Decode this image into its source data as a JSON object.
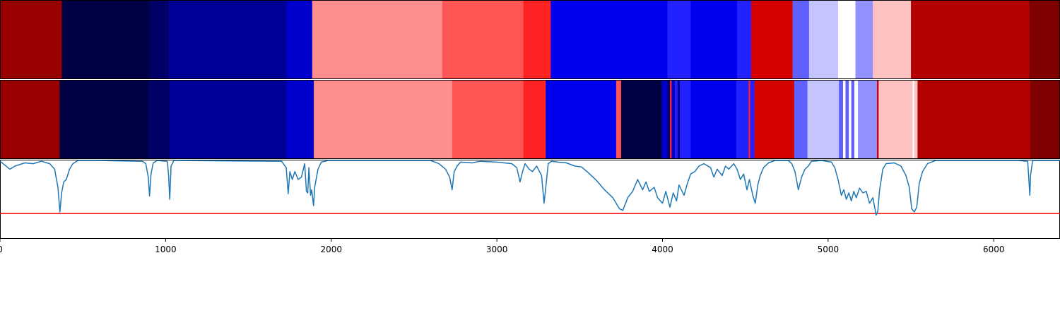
{
  "chart_data": {
    "type": "heatmap",
    "xlim": [
      0,
      6400
    ],
    "xticks": [
      "0",
      "1000",
      "2000",
      "3000",
      "4000",
      "5000",
      "6000"
    ],
    "tick_values": [
      0,
      1000,
      2000,
      3000,
      4000,
      5000,
      6000
    ],
    "rows": [
      {
        "segments": [
          {
            "start": 0,
            "end": 373,
            "color": "#990000"
          },
          {
            "start": 373,
            "end": 905,
            "color": "#000044"
          },
          {
            "start": 905,
            "end": 1020,
            "color": "#000066"
          },
          {
            "start": 1020,
            "end": 1730,
            "color": "#000099"
          },
          {
            "start": 1730,
            "end": 1885,
            "color": "#0000cc"
          },
          {
            "start": 1885,
            "end": 2670,
            "color": "#ff8f8f"
          },
          {
            "start": 2670,
            "end": 3160,
            "color": "#ff5555"
          },
          {
            "start": 3160,
            "end": 3325,
            "color": "#ff2222"
          },
          {
            "start": 3325,
            "end": 4030,
            "color": "#0000ee"
          },
          {
            "start": 4030,
            "end": 4170,
            "color": "#2222ff"
          },
          {
            "start": 4170,
            "end": 4450,
            "color": "#0000ee"
          },
          {
            "start": 4450,
            "end": 4535,
            "color": "#2222ff"
          },
          {
            "start": 4535,
            "end": 4785,
            "color": "#d50000"
          },
          {
            "start": 4785,
            "end": 4885,
            "color": "#6060ff"
          },
          {
            "start": 4885,
            "end": 5060,
            "color": "#c4c4ff"
          },
          {
            "start": 5060,
            "end": 5165,
            "color": "#ffffff"
          },
          {
            "start": 5165,
            "end": 5270,
            "color": "#9090ff"
          },
          {
            "start": 5270,
            "end": 5500,
            "color": "#ffc2c2"
          },
          {
            "start": 5500,
            "end": 6215,
            "color": "#b30000"
          },
          {
            "start": 6215,
            "end": 6400,
            "color": "#7f0000"
          }
        ]
      },
      {
        "segments": [
          {
            "start": 0,
            "end": 360,
            "color": "#990000"
          },
          {
            "start": 360,
            "end": 895,
            "color": "#000044"
          },
          {
            "start": 895,
            "end": 1025,
            "color": "#000066"
          },
          {
            "start": 1025,
            "end": 1730,
            "color": "#000099"
          },
          {
            "start": 1730,
            "end": 1895,
            "color": "#0000cc"
          },
          {
            "start": 1895,
            "end": 2730,
            "color": "#ff8f8f"
          },
          {
            "start": 2730,
            "end": 3160,
            "color": "#ff5555"
          },
          {
            "start": 3160,
            "end": 3295,
            "color": "#ff2222"
          },
          {
            "start": 3295,
            "end": 3720,
            "color": "#0000ee"
          },
          {
            "start": 3720,
            "end": 3750,
            "color": "#ff5555"
          },
          {
            "start": 3750,
            "end": 3995,
            "color": "#000044"
          },
          {
            "start": 3995,
            "end": 4030,
            "color": "#0000cc"
          },
          {
            "start": 4030,
            "end": 4045,
            "color": "#000066"
          },
          {
            "start": 4045,
            "end": 4055,
            "color": "#ff2222"
          },
          {
            "start": 4055,
            "end": 4075,
            "color": "#0000cc"
          },
          {
            "start": 4075,
            "end": 4090,
            "color": "#2222ff"
          },
          {
            "start": 4090,
            "end": 4105,
            "color": "#000099"
          },
          {
            "start": 4105,
            "end": 4170,
            "color": "#2222ff"
          },
          {
            "start": 4170,
            "end": 4445,
            "color": "#0000ee"
          },
          {
            "start": 4445,
            "end": 4520,
            "color": "#2222ff"
          },
          {
            "start": 4520,
            "end": 4530,
            "color": "#ff2222"
          },
          {
            "start": 4530,
            "end": 4555,
            "color": "#2222ff"
          },
          {
            "start": 4555,
            "end": 4795,
            "color": "#d50000"
          },
          {
            "start": 4795,
            "end": 4875,
            "color": "#6060ff"
          },
          {
            "start": 4875,
            "end": 5065,
            "color": "#c4c4ff"
          },
          {
            "start": 5065,
            "end": 5090,
            "color": "#6060ff"
          },
          {
            "start": 5090,
            "end": 5105,
            "color": "#ffffff"
          },
          {
            "start": 5105,
            "end": 5125,
            "color": "#6060ff"
          },
          {
            "start": 5125,
            "end": 5140,
            "color": "#ffffff"
          },
          {
            "start": 5140,
            "end": 5158,
            "color": "#6060ff"
          },
          {
            "start": 5158,
            "end": 5180,
            "color": "#ffffff"
          },
          {
            "start": 5180,
            "end": 5295,
            "color": "#9090ff"
          },
          {
            "start": 5295,
            "end": 5305,
            "color": "#cc0000"
          },
          {
            "start": 5305,
            "end": 5510,
            "color": "#ffc2c2"
          },
          {
            "start": 5510,
            "end": 5520,
            "color": "#ffffff"
          },
          {
            "start": 5520,
            "end": 5540,
            "color": "#ffc2c2"
          },
          {
            "start": 5540,
            "end": 6220,
            "color": "#b30000"
          },
          {
            "start": 6220,
            "end": 6400,
            "color": "#7f0000"
          }
        ]
      }
    ],
    "line_panel": {
      "type": "line",
      "ylim": [
        1.0,
        0.0
      ],
      "threshold": 0.68,
      "threshold_color": "#ff0000",
      "line_color": "#1f77b4",
      "points": [
        [
          0,
          0.02
        ],
        [
          60,
          0.12
        ],
        [
          90,
          0.08
        ],
        [
          150,
          0.04
        ],
        [
          200,
          0.05
        ],
        [
          250,
          0.02
        ],
        [
          300,
          0.05
        ],
        [
          330,
          0.12
        ],
        [
          350,
          0.35
        ],
        [
          362,
          0.66
        ],
        [
          372,
          0.42
        ],
        [
          385,
          0.28
        ],
        [
          400,
          0.25
        ],
        [
          420,
          0.12
        ],
        [
          440,
          0.05
        ],
        [
          470,
          0.01
        ],
        [
          600,
          0.01
        ],
        [
          860,
          0.02
        ],
        [
          880,
          0.05
        ],
        [
          895,
          0.22
        ],
        [
          903,
          0.46
        ],
        [
          912,
          0.18
        ],
        [
          925,
          0.04
        ],
        [
          950,
          0.01
        ],
        [
          1010,
          0.02
        ],
        [
          1018,
          0.2
        ],
        [
          1025,
          0.5
        ],
        [
          1033,
          0.08
        ],
        [
          1050,
          0.01
        ],
        [
          1700,
          0.02
        ],
        [
          1728,
          0.1
        ],
        [
          1740,
          0.43
        ],
        [
          1750,
          0.15
        ],
        [
          1765,
          0.25
        ],
        [
          1780,
          0.15
        ],
        [
          1800,
          0.25
        ],
        [
          1820,
          0.22
        ],
        [
          1840,
          0.05
        ],
        [
          1850,
          0.4
        ],
        [
          1858,
          0.42
        ],
        [
          1865,
          0.1
        ],
        [
          1875,
          0.45
        ],
        [
          1882,
          0.38
        ],
        [
          1893,
          0.58
        ],
        [
          1900,
          0.35
        ],
        [
          1920,
          0.12
        ],
        [
          1940,
          0.03
        ],
        [
          1980,
          0.01
        ],
        [
          2600,
          0.01
        ],
        [
          2650,
          0.05
        ],
        [
          2690,
          0.12
        ],
        [
          2715,
          0.22
        ],
        [
          2730,
          0.38
        ],
        [
          2742,
          0.15
        ],
        [
          2760,
          0.08
        ],
        [
          2780,
          0.03
        ],
        [
          2850,
          0.04
        ],
        [
          2900,
          0.02
        ],
        [
          3000,
          0.03
        ],
        [
          3090,
          0.05
        ],
        [
          3120,
          0.1
        ],
        [
          3140,
          0.28
        ],
        [
          3155,
          0.15
        ],
        [
          3170,
          0.05
        ],
        [
          3195,
          0.12
        ],
        [
          3215,
          0.15
        ],
        [
          3240,
          0.08
        ],
        [
          3270,
          0.2
        ],
        [
          3285,
          0.55
        ],
        [
          3295,
          0.35
        ],
        [
          3310,
          0.05
        ],
        [
          3330,
          0.02
        ],
        [
          3370,
          0.03
        ],
        [
          3420,
          0.04
        ],
        [
          3470,
          0.08
        ],
        [
          3510,
          0.09
        ],
        [
          3550,
          0.16
        ],
        [
          3600,
          0.26
        ],
        [
          3650,
          0.38
        ],
        [
          3700,
          0.48
        ],
        [
          3740,
          0.62
        ],
        [
          3760,
          0.64
        ],
        [
          3790,
          0.48
        ],
        [
          3820,
          0.4
        ],
        [
          3850,
          0.25
        ],
        [
          3880,
          0.38
        ],
        [
          3900,
          0.28
        ],
        [
          3920,
          0.4
        ],
        [
          3950,
          0.35
        ],
        [
          3970,
          0.48
        ],
        [
          4000,
          0.55
        ],
        [
          4020,
          0.4
        ],
        [
          4045,
          0.6
        ],
        [
          4065,
          0.42
        ],
        [
          4085,
          0.52
        ],
        [
          4100,
          0.32
        ],
        [
          4130,
          0.45
        ],
        [
          4150,
          0.3
        ],
        [
          4170,
          0.18
        ],
        [
          4195,
          0.15
        ],
        [
          4220,
          0.08
        ],
        [
          4250,
          0.05
        ],
        [
          4290,
          0.1
        ],
        [
          4310,
          0.22
        ],
        [
          4330,
          0.12
        ],
        [
          4360,
          0.2
        ],
        [
          4380,
          0.08
        ],
        [
          4400,
          0.12
        ],
        [
          4430,
          0.05
        ],
        [
          4450,
          0.12
        ],
        [
          4470,
          0.25
        ],
        [
          4490,
          0.18
        ],
        [
          4510,
          0.38
        ],
        [
          4525,
          0.25
        ],
        [
          4545,
          0.45
        ],
        [
          4560,
          0.55
        ],
        [
          4575,
          0.32
        ],
        [
          4590,
          0.2
        ],
        [
          4610,
          0.1
        ],
        [
          4640,
          0.04
        ],
        [
          4680,
          0.01
        ],
        [
          4760,
          0.01
        ],
        [
          4780,
          0.05
        ],
        [
          4800,
          0.15
        ],
        [
          4820,
          0.38
        ],
        [
          4840,
          0.22
        ],
        [
          4860,
          0.12
        ],
        [
          4880,
          0.08
        ],
        [
          4900,
          0.02
        ],
        [
          4960,
          0.01
        ],
        [
          5020,
          0.03
        ],
        [
          5040,
          0.1
        ],
        [
          5060,
          0.25
        ],
        [
          5080,
          0.45
        ],
        [
          5095,
          0.38
        ],
        [
          5110,
          0.5
        ],
        [
          5125,
          0.42
        ],
        [
          5140,
          0.52
        ],
        [
          5155,
          0.4
        ],
        [
          5170,
          0.48
        ],
        [
          5190,
          0.36
        ],
        [
          5210,
          0.42
        ],
        [
          5230,
          0.4
        ],
        [
          5250,
          0.55
        ],
        [
          5270,
          0.48
        ],
        [
          5290,
          0.7
        ],
        [
          5300,
          0.65
        ],
        [
          5310,
          0.4
        ],
        [
          5330,
          0.12
        ],
        [
          5350,
          0.05
        ],
        [
          5400,
          0.04
        ],
        [
          5440,
          0.08
        ],
        [
          5470,
          0.2
        ],
        [
          5490,
          0.35
        ],
        [
          5505,
          0.62
        ],
        [
          5520,
          0.66
        ],
        [
          5535,
          0.6
        ],
        [
          5550,
          0.3
        ],
        [
          5570,
          0.15
        ],
        [
          5600,
          0.05
        ],
        [
          5650,
          0.01
        ],
        [
          5900,
          0.01
        ],
        [
          6150,
          0.01
        ],
        [
          6205,
          0.02
        ],
        [
          6212,
          0.25
        ],
        [
          6218,
          0.45
        ],
        [
          6222,
          0.2
        ],
        [
          6235,
          0.01
        ],
        [
          6400,
          0.01
        ]
      ]
    }
  }
}
